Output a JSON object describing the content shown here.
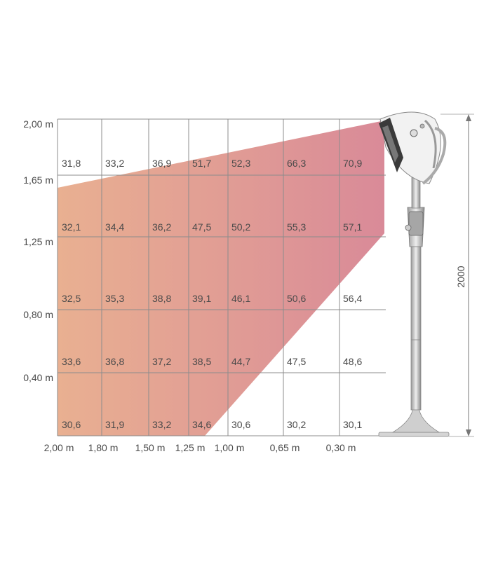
{
  "diagram": {
    "y_axis_labels": [
      "2,00 m",
      "1,65 m",
      "1,25 m",
      "0,80 m",
      "0,40 m"
    ],
    "x_axis_labels": [
      "2,00 m",
      "1,80 m",
      "1,50 m",
      "1,25 m",
      "1,00 m",
      "0,65 m",
      "0,30 m"
    ],
    "height_dimension_label": "2000",
    "rows": [
      [
        "31,8",
        "33,2",
        "36,9",
        "51,7",
        "52,3",
        "66,3",
        "70,9"
      ],
      [
        "32,1",
        "34,4",
        "36,2",
        "47,5",
        "50,2",
        "55,3",
        "57,1"
      ],
      [
        "32,5",
        "35,3",
        "38,8",
        "39,1",
        "46,1",
        "50,6",
        "56,4"
      ],
      [
        "33,6",
        "36,8",
        "37,2",
        "38,5",
        "44,7",
        "47,5",
        "48,6"
      ],
      [
        "30,6",
        "31,9",
        "33,2",
        "34,6",
        "30,6",
        "30,2",
        "30,1"
      ]
    ],
    "colors": {
      "beam_start": "#e9b091",
      "beam_end": "#d98a98",
      "grid": "#8c8c8c",
      "text": "#4a4a4a"
    },
    "icons": [
      "patio-heater-icon"
    ]
  }
}
